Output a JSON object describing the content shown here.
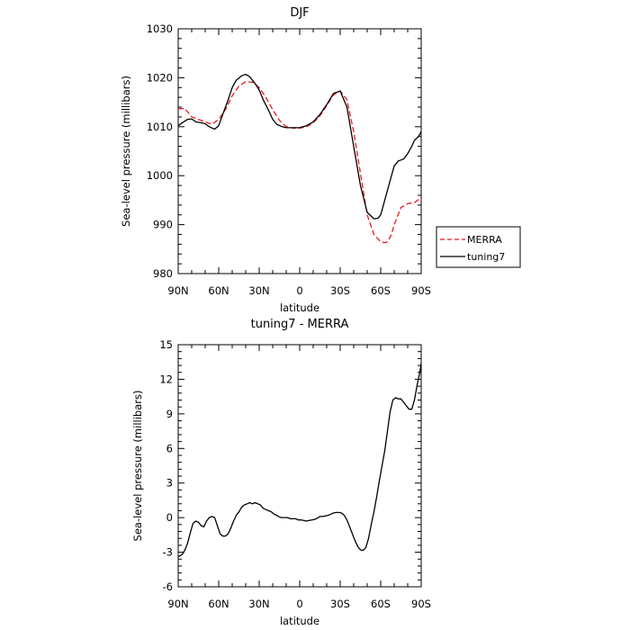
{
  "chart_data": [
    {
      "type": "line",
      "title": "DJF",
      "xlabel": "latitude",
      "ylabel": "Sea-level pressure (millibars)",
      "xlim": [
        90,
        -90
      ],
      "ylim": [
        980,
        1030
      ],
      "x_tick_values": [
        90,
        60,
        30,
        0,
        -30,
        -60,
        -90
      ],
      "x_tick_labels": [
        "90N",
        "60N",
        "30N",
        "0",
        "30S",
        "60S",
        "90S"
      ],
      "y_tick_values": [
        980,
        990,
        1000,
        1010,
        1020,
        1030
      ],
      "y_tick_labels": [
        "980",
        "990",
        "1000",
        "1010",
        "1020",
        "1030"
      ],
      "legend_position": "right, outside plot",
      "series": [
        {
          "name": "MERRA",
          "color": "#e8191f",
          "dash": "dashed",
          "x": [
            90,
            85,
            80,
            75,
            70,
            65,
            60,
            55,
            50,
            45,
            40,
            35,
            30,
            25,
            20,
            15,
            10,
            5,
            0,
            -5,
            -10,
            -15,
            -20,
            -25,
            -30,
            -35,
            -40,
            -45,
            -50,
            -55,
            -60,
            -63,
            -65,
            -68,
            -70,
            -75,
            -80,
            -85,
            -90
          ],
          "y": [
            1013.7,
            1013.7,
            1012,
            1011.5,
            1011,
            1010.5,
            1011.5,
            1013.5,
            1016.3,
            1018.3,
            1019.2,
            1019.1,
            1018,
            1016,
            1013.5,
            1011.3,
            1010,
            1009.7,
            1009.7,
            1010,
            1010.8,
            1012.2,
            1014.3,
            1016.5,
            1017.3,
            1015.5,
            1009,
            1000.5,
            992,
            988,
            986.5,
            986.3,
            986.5,
            988,
            990,
            993.5,
            994.3,
            994.5,
            995.5
          ]
        },
        {
          "name": "tuning7",
          "color": "#000000",
          "dash": "solid",
          "x": [
            90,
            87,
            83,
            80,
            77,
            73,
            70,
            67,
            63,
            60,
            57,
            53,
            50,
            47,
            43,
            40,
            37,
            33,
            30,
            27,
            23,
            20,
            17,
            13,
            10,
            5,
            0,
            -5,
            -10,
            -15,
            -20,
            -25,
            -30,
            -35,
            -40,
            -45,
            -50,
            -55,
            -58,
            -60,
            -62,
            -65,
            -68,
            -70,
            -73,
            -75,
            -77,
            -80,
            -83,
            -85,
            -88,
            -90
          ],
          "y": [
            1010.2,
            1010.8,
            1011.5,
            1011.6,
            1011,
            1010.8,
            1010.6,
            1010,
            1009.5,
            1010.2,
            1012.5,
            1015.5,
            1018,
            1019.5,
            1020.4,
            1020.7,
            1020.2,
            1018.8,
            1017.5,
            1015.5,
            1013.3,
            1011.5,
            1010.5,
            1010,
            1009.8,
            1009.8,
            1009.8,
            1010.2,
            1011,
            1012.5,
            1014.5,
            1016.8,
            1017.3,
            1014,
            1006,
            998,
            992.5,
            991.2,
            991.3,
            992,
            994,
            997,
            1000,
            1002,
            1003,
            1003.2,
            1003.4,
            1004.5,
            1006,
            1007.2,
            1008,
            1009
          ]
        }
      ]
    },
    {
      "type": "line",
      "title": "tuning7 - MERRA",
      "xlabel": "latitude",
      "ylabel": "Sea-level pressure (millibars)",
      "xlim": [
        90,
        -90
      ],
      "ylim": [
        -6,
        15
      ],
      "x_tick_values": [
        90,
        60,
        30,
        0,
        -30,
        -60,
        -90
      ],
      "x_tick_labels": [
        "90N",
        "60N",
        "30N",
        "0",
        "30S",
        "60S",
        "90S"
      ],
      "y_tick_values": [
        -6,
        -3,
        0,
        3,
        6,
        9,
        12,
        15
      ],
      "y_tick_labels": [
        "-6",
        "-3",
        "0",
        "3",
        "6",
        "9",
        "12",
        "15"
      ],
      "series": [
        {
          "color": "#000000",
          "dash": "solid",
          "x": [
            90,
            87,
            85,
            83,
            81,
            79,
            77,
            75,
            73,
            71,
            69,
            67,
            65,
            63,
            61,
            59,
            57,
            55,
            53,
            51,
            49,
            47,
            45,
            43,
            41,
            39,
            37,
            35,
            33,
            31,
            29,
            27,
            25,
            23,
            21,
            19,
            17,
            15,
            13,
            11,
            9,
            7,
            5,
            3,
            1,
            -1,
            -3,
            -5,
            -7,
            -9,
            -11,
            -13,
            -15,
            -17,
            -19,
            -21,
            -23,
            -25,
            -27,
            -29,
            -31,
            -33,
            -35,
            -37,
            -39,
            -41,
            -43,
            -45,
            -47,
            -49,
            -51,
            -53,
            -55,
            -57,
            -59,
            -61,
            -63,
            -65,
            -67,
            -69,
            -71,
            -73,
            -75,
            -77,
            -79,
            -81,
            -83,
            -85,
            -87,
            -89,
            -90
          ],
          "y": [
            -3.4,
            -3.2,
            -2.8,
            -2.2,
            -1.3,
            -0.5,
            -0.3,
            -0.4,
            -0.7,
            -0.8,
            -0.3,
            0,
            0.1,
            0,
            -0.7,
            -1.4,
            -1.6,
            -1.6,
            -1.4,
            -0.9,
            -0.3,
            0.2,
            0.5,
            0.9,
            1.1,
            1.2,
            1.3,
            1.2,
            1.3,
            1.2,
            1.1,
            0.8,
            0.7,
            0.6,
            0.5,
            0.3,
            0.2,
            0.05,
            0,
            0,
            0,
            -0.1,
            -0.1,
            -0.1,
            -0.2,
            -0.2,
            -0.25,
            -0.3,
            -0.25,
            -0.2,
            -0.15,
            -0.05,
            0.1,
            0.1,
            0.15,
            0.2,
            0.3,
            0.4,
            0.45,
            0.45,
            0.4,
            0.2,
            -0.2,
            -0.8,
            -1.4,
            -2,
            -2.5,
            -2.8,
            -2.85,
            -2.6,
            -1.8,
            -0.6,
            0.5,
            1.8,
            3.2,
            4.5,
            5.8,
            7.5,
            9.2,
            10.2,
            10.4,
            10.3,
            10.3,
            10,
            9.7,
            9.4,
            9.4,
            10.2,
            11.5,
            12.6,
            13.4
          ]
        }
      ]
    }
  ]
}
